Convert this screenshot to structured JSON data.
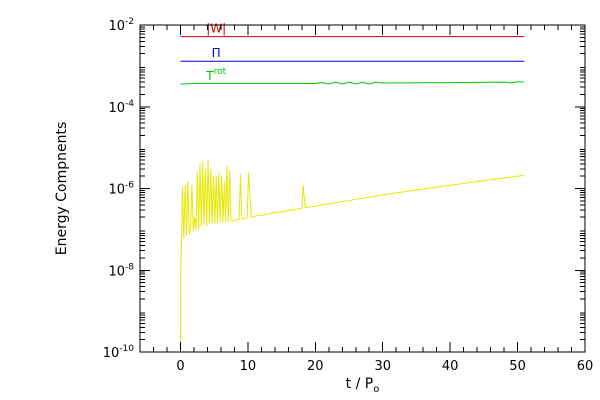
{
  "chart_data": {
    "type": "line",
    "title": "",
    "xlabel": "t / P",
    "xlabel_subscript": "o",
    "ylabel": "Energy Compnents",
    "xlim": [
      -6,
      60
    ],
    "ylim": [
      1e-10,
      0.01
    ],
    "yscale": "log",
    "grid": false,
    "x_ticks": [
      0,
      10,
      20,
      30,
      40,
      50,
      60
    ],
    "x_tick_labels": [
      "0",
      "10",
      "20",
      "30",
      "40",
      "50",
      "60"
    ],
    "y_ticks": [
      1e-10,
      1e-08,
      1e-06,
      0.0001,
      0.01
    ],
    "y_tick_labels": [
      {
        "base": "10",
        "exp": "-10"
      },
      {
        "base": "10",
        "exp": "-8"
      },
      {
        "base": "10",
        "exp": "-6"
      },
      {
        "base": "10",
        "exp": "-4"
      },
      {
        "base": "10",
        "exp": "-2"
      }
    ],
    "series": [
      {
        "name": "|W|",
        "label_text": "|W|",
        "label_sup": "",
        "color": "#cc0000",
        "x": [
          0,
          51
        ],
        "y": [
          0.0052,
          0.0052
        ]
      },
      {
        "name": "Π",
        "label_text": "Π",
        "label_sup": "",
        "color": "#0000cc",
        "x": [
          0,
          51
        ],
        "y": [
          0.0013,
          0.0013
        ]
      },
      {
        "name": "T rot",
        "label_text": "T",
        "label_sup": "rot",
        "color": "#00c800",
        "x": [
          0,
          2,
          5,
          10,
          20,
          21,
          22,
          23,
          24,
          25,
          26,
          27,
          28,
          29,
          30,
          40,
          48,
          49,
          50,
          51
        ],
        "y": [
          0.00036,
          0.00037,
          0.00037,
          0.00037,
          0.00037,
          0.00039,
          0.00036,
          0.0004,
          0.00036,
          0.0004,
          0.00036,
          0.0004,
          0.00036,
          0.0004,
          0.00038,
          0.00039,
          0.0004,
          0.00038,
          0.00041,
          0.0004
        ]
      },
      {
        "name": "yellow",
        "label_text": "",
        "label_sup": "",
        "color": "#e8e800",
        "x": [
          0.0,
          0.05,
          0.15,
          0.3,
          0.5,
          0.7,
          0.9,
          1.1,
          1.3,
          1.5,
          1.7,
          1.9,
          2.1,
          2.3,
          2.5,
          2.7,
          2.9,
          3.1,
          3.3,
          3.5,
          3.7,
          3.9,
          4.1,
          4.3,
          4.5,
          4.7,
          4.9,
          5.1,
          5.3,
          5.5,
          5.7,
          5.9,
          6.1,
          6.3,
          6.5,
          6.7,
          6.9,
          7.1,
          7.3,
          7.5,
          7.7,
          7.9,
          8.1,
          8.3,
          8.5,
          8.7,
          8.9,
          9.1,
          9.3,
          9.5,
          9.7,
          9.9,
          10.1,
          10.5,
          11.0,
          11.5,
          12.0,
          12.5,
          13.0,
          13.5,
          14.0,
          14.5,
          15.0,
          15.5,
          16.0,
          16.5,
          17.0,
          17.5,
          18.0,
          18.2,
          18.5,
          19.0,
          20.0,
          21.0,
          22.0,
          23.0,
          24.0,
          25.0,
          26.0,
          27.0,
          28.0,
          29.0,
          30.0,
          31.0,
          32.0,
          33.0,
          34.0,
          35.0,
          36.0,
          37.0,
          38.0,
          39.0,
          40.0,
          41.0,
          42.0,
          43.0,
          44.0,
          45.0,
          46.0,
          47.0,
          48.0,
          49.0,
          50.0,
          51.0
        ],
        "y": [
          1e-10,
          1.5e-08,
          4e-08,
          1.1e-06,
          6e-08,
          1.2e-06,
          7e-08,
          1.5e-06,
          8e-08,
          1e-07,
          1.2e-06,
          9e-08,
          2e-07,
          1e-07,
          2.5e-06,
          1e-07,
          4e-06,
          1.2e-07,
          4.5e-06,
          1.3e-07,
          3e-06,
          1.2e-07,
          5e-06,
          1.4e-07,
          3e-06,
          1.3e-07,
          2e-06,
          1.4e-07,
          2e-06,
          1.4e-07,
          2.5e-06,
          1.5e-07,
          2e-06,
          1.5e-07,
          1.5e-06,
          1.5e-07,
          3.5e-06,
          1.5e-07,
          2.8e-06,
          1.6e-07,
          1.6e-07,
          1.6e-07,
          1.7e-07,
          1.7e-07,
          1.7e-07,
          1.8e-07,
          2.2e-06,
          1.8e-07,
          1.8e-07,
          1.9e-07,
          1.9e-07,
          1.9e-07,
          2.5e-06,
          2e-07,
          2.1e-07,
          2.2e-07,
          2.2e-07,
          2.3e-07,
          2.4e-07,
          2.5e-07,
          2.6e-07,
          2.6e-07,
          2.7e-07,
          2.8e-07,
          2.9e-07,
          3e-07,
          3.1e-07,
          3.2e-07,
          3.3e-07,
          1.2e-06,
          3.4e-07,
          3.5e-07,
          3.7e-07,
          4e-07,
          4.2e-07,
          4.5e-07,
          4.8e-07,
          5.1e-07,
          5.4e-07,
          5.8e-07,
          6.1e-07,
          6.5e-07,
          7e-07,
          7.4e-07,
          7.8e-07,
          8.2e-07,
          8.7e-07,
          9.2e-07,
          9.7e-07,
          1.03e-06,
          1.08e-06,
          1.14e-06,
          1.2e-06,
          1.26e-06,
          1.33e-06,
          1.4e-06,
          1.48e-06,
          1.56e-06,
          1.64e-06,
          1.72e-06,
          1.81e-06,
          1.9e-06,
          2e-06,
          2.1e-06
        ]
      }
    ]
  }
}
